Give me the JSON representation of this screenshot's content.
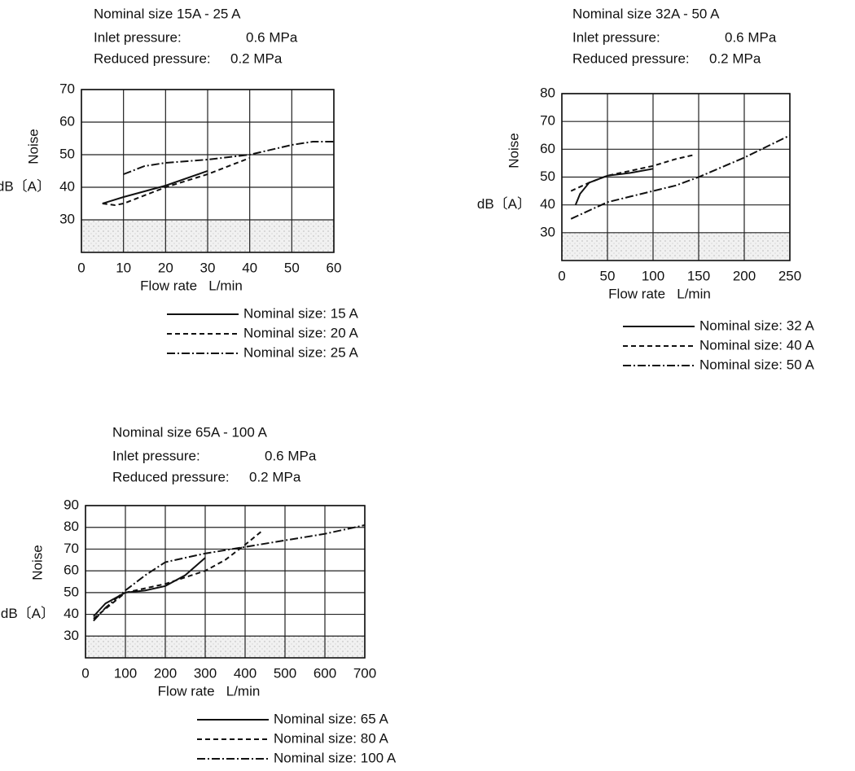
{
  "chart_data": [
    {
      "type": "line",
      "title": "Nominal size 15A - 25 A",
      "inlet_label": "Inlet pressure:",
      "inlet_value": "0.6 MPa",
      "reduced_label": "Reduced pressure:",
      "reduced_value": "0.2 MPa",
      "y_label": "Noise",
      "y_unit": "dB〔A〕",
      "x_label": "Flow rate   L/min",
      "xlim": [
        0,
        60
      ],
      "xticks": [
        0,
        10,
        20,
        30,
        40,
        50,
        60
      ],
      "ylim": [
        20,
        70
      ],
      "yticks": [
        30,
        40,
        50,
        60,
        70
      ],
      "grid": true,
      "series": [
        {
          "name": "Nominal size: 15 A",
          "color": "#111111",
          "dash": "solid",
          "x": [
            5,
            10,
            20,
            30
          ],
          "values": [
            35,
            37,
            40.5,
            45
          ]
        },
        {
          "name": "Nominal size: 20 A",
          "color": "#111111",
          "dash": "dashed",
          "x": [
            5,
            8,
            10,
            20,
            30,
            40
          ],
          "values": [
            35,
            34.5,
            35,
            40,
            44,
            49
          ]
        },
        {
          "name": "Nominal size: 25 A",
          "color": "#111111",
          "dash": "dashdot",
          "x": [
            10,
            15,
            20,
            30,
            40,
            50,
            55,
            60
          ],
          "values": [
            44,
            46.5,
            47.5,
            48.5,
            50,
            53,
            54,
            54
          ]
        }
      ]
    },
    {
      "type": "line",
      "title": "Nominal size 32A - 50 A",
      "inlet_label": "Inlet pressure:",
      "inlet_value": "0.6 MPa",
      "reduced_label": "Reduced pressure:",
      "reduced_value": "0.2 MPa",
      "y_label": "Noise",
      "y_unit": "dB〔A〕",
      "x_label": "Flow rate   L/min",
      "xlim": [
        0,
        250
      ],
      "xticks": [
        0,
        50,
        100,
        150,
        200,
        250
      ],
      "ylim": [
        20,
        80
      ],
      "yticks": [
        30,
        40,
        50,
        60,
        70,
        80
      ],
      "grid": true,
      "series": [
        {
          "name": "Nominal size: 32 A",
          "color": "#111111",
          "dash": "solid",
          "x": [
            15,
            20,
            30,
            50,
            75,
            100
          ],
          "values": [
            40,
            44,
            48,
            50.5,
            51.5,
            53
          ]
        },
        {
          "name": "Nominal size: 40 A",
          "color": "#111111",
          "dash": "dashed",
          "x": [
            10,
            30,
            50,
            100,
            125,
            145
          ],
          "values": [
            45,
            48,
            50.5,
            54,
            56.5,
            58
          ]
        },
        {
          "name": "Nominal size: 50 A",
          "color": "#111111",
          "dash": "dashdot",
          "x": [
            10,
            50,
            100,
            125,
            150,
            200,
            250
          ],
          "values": [
            35,
            41,
            45,
            47,
            50,
            57,
            65
          ]
        }
      ]
    },
    {
      "type": "line",
      "title": "Nominal size 65A - 100 A",
      "inlet_label": "Inlet pressure:",
      "inlet_value": "0.6 MPa",
      "reduced_label": "Reduced pressure:",
      "reduced_value": "0.2 MPa",
      "y_label": "Noise",
      "y_unit": "dB〔A〕",
      "x_label": "Flow rate   L/min",
      "xlim": [
        0,
        700
      ],
      "xticks": [
        0,
        100,
        200,
        300,
        400,
        500,
        600,
        700
      ],
      "ylim": [
        20,
        90
      ],
      "yticks": [
        30,
        40,
        50,
        60,
        70,
        80,
        90
      ],
      "grid": true,
      "series": [
        {
          "name": "Nominal size: 65 A",
          "color": "#111111",
          "dash": "solid",
          "x": [
            20,
            50,
            100,
            150,
            200,
            250,
            300
          ],
          "values": [
            39,
            45,
            50,
            51,
            53,
            58,
            66
          ]
        },
        {
          "name": "Nominal size: 80 A",
          "color": "#111111",
          "dash": "dashed",
          "x": [
            20,
            100,
            200,
            300,
            350,
            400,
            440
          ],
          "values": [
            38,
            50,
            54,
            60,
            65,
            72,
            78
          ]
        },
        {
          "name": "Nominal size: 100 A",
          "color": "#111111",
          "dash": "dashdot",
          "x": [
            20,
            50,
            100,
            150,
            200,
            250,
            300,
            400,
            500,
            600,
            700
          ],
          "values": [
            37,
            43,
            51,
            58,
            64,
            66,
            68,
            71,
            74,
            77,
            81
          ]
        }
      ]
    }
  ]
}
